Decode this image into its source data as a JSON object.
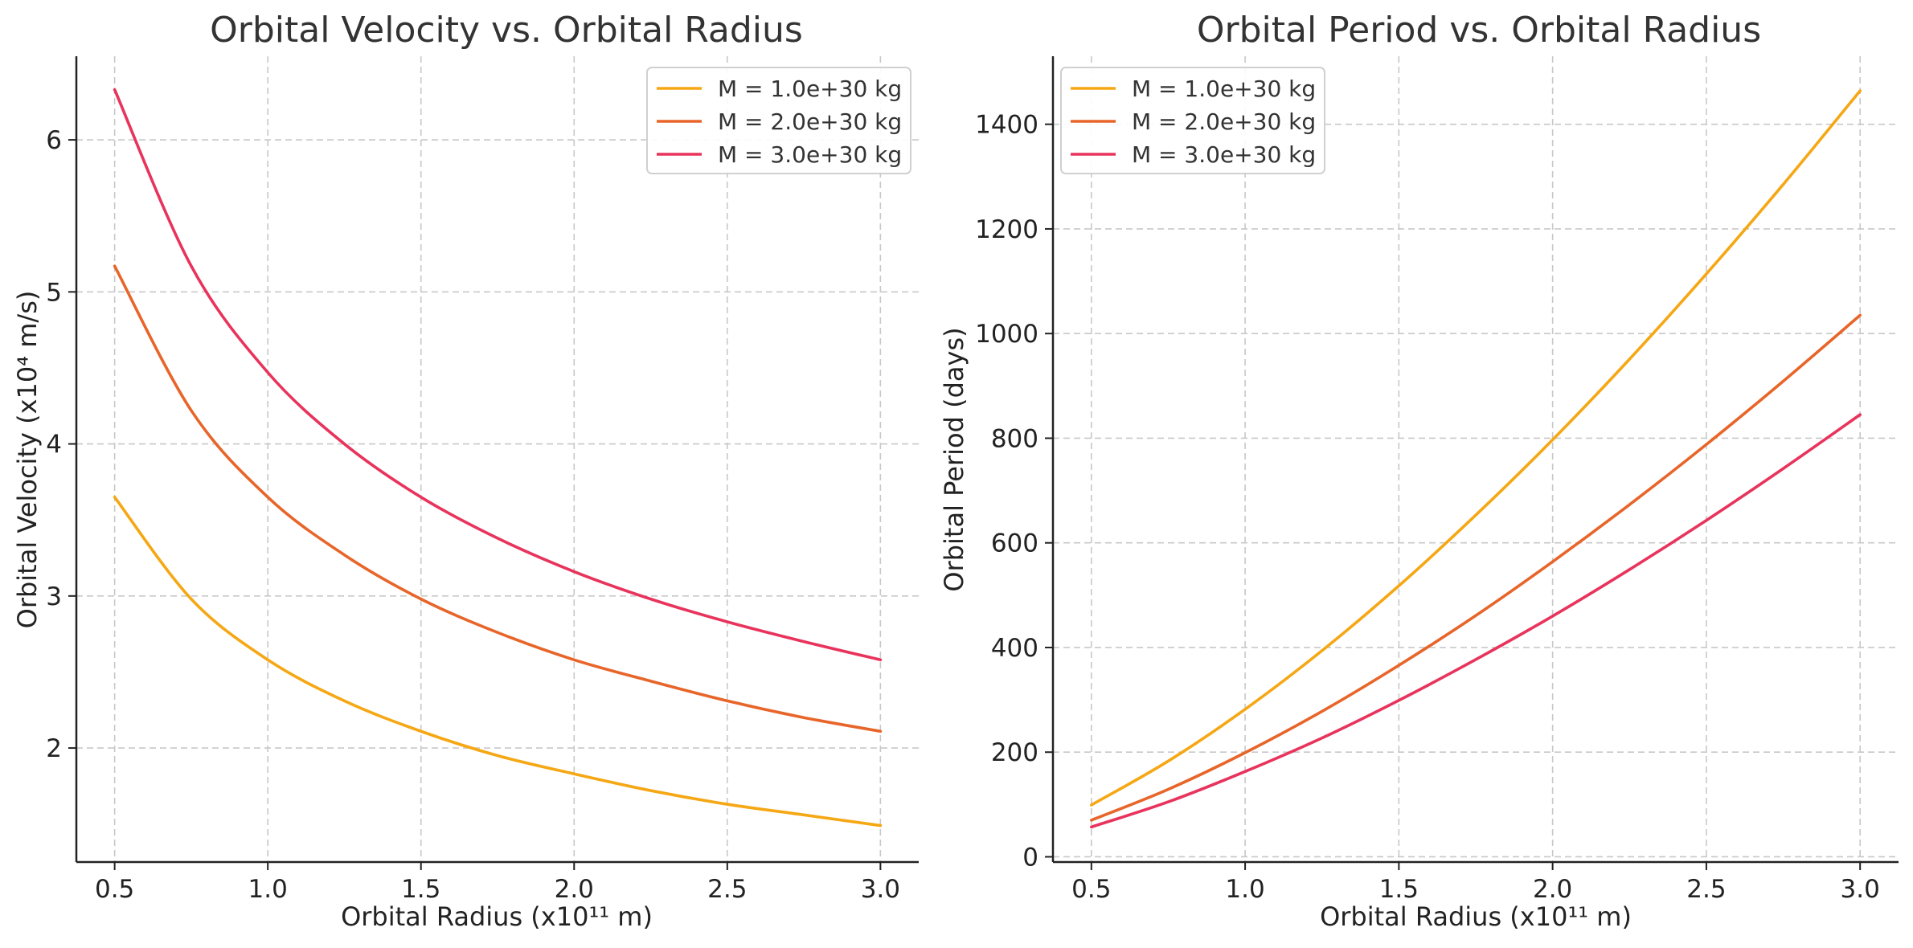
{
  "chart_data": [
    {
      "type": "line",
      "title": "Orbital Velocity vs. Orbital Radius",
      "xlabel": "Orbital Radius (x10¹¹ m)",
      "ylabel": "Orbital Velocity (x10⁴ m/s)",
      "xlim": [
        0.375,
        3.125
      ],
      "ylim": [
        1.25,
        6.55
      ],
      "xticks": [
        0.5,
        1.0,
        1.5,
        2.0,
        2.5,
        3.0
      ],
      "xtick_labels": [
        "0.5",
        "1.0",
        "1.5",
        "2.0",
        "2.5",
        "3.0"
      ],
      "yticks": [
        2,
        3,
        4,
        5,
        6
      ],
      "ytick_labels": [
        "2",
        "3",
        "4",
        "5",
        "6"
      ],
      "grid": true,
      "legend_position": "top-right",
      "x": [
        0.5,
        0.75,
        1.0,
        1.25,
        1.5,
        1.75,
        2.0,
        2.25,
        2.5,
        2.75,
        3.0
      ],
      "series": [
        {
          "name": "M = 1.0e+30 kg",
          "color": "#f5a714",
          "values": [
            3.65,
            2.98,
            2.58,
            2.31,
            2.11,
            1.95,
            1.83,
            1.72,
            1.63,
            1.56,
            1.49
          ]
        },
        {
          "name": "M = 2.0e+30 kg",
          "color": "#e8652a",
          "values": [
            5.17,
            4.22,
            3.65,
            3.27,
            2.98,
            2.76,
            2.58,
            2.44,
            2.31,
            2.2,
            2.11
          ]
        },
        {
          "name": "M = 3.0e+30 kg",
          "color": "#e8345c",
          "values": [
            6.33,
            5.17,
            4.47,
            4.0,
            3.65,
            3.38,
            3.16,
            2.98,
            2.83,
            2.7,
            2.58
          ]
        }
      ]
    },
    {
      "type": "line",
      "title": "Orbital Period vs. Orbital Radius",
      "xlabel": "Orbital Radius (x10¹¹ m)",
      "ylabel": "Orbital Period (days)",
      "xlim": [
        0.375,
        3.125
      ],
      "ylim": [
        -10,
        1530
      ],
      "xticks": [
        0.5,
        1.0,
        1.5,
        2.0,
        2.5,
        3.0
      ],
      "xtick_labels": [
        "0.5",
        "1.0",
        "1.5",
        "2.0",
        "2.5",
        "3.0"
      ],
      "yticks": [
        0,
        200,
        400,
        600,
        800,
        1000,
        1200,
        1400
      ],
      "ytick_labels": [
        "0",
        "200",
        "400",
        "600",
        "800",
        "1000",
        "1200",
        "1400"
      ],
      "grid": true,
      "legend_position": "top-left",
      "x": [
        0.5,
        0.75,
        1.0,
        1.25,
        1.5,
        1.75,
        2.0,
        2.25,
        2.5,
        2.75,
        3.0
      ],
      "series": [
        {
          "name": "M = 1.0e+30 kg",
          "color": "#f5a714",
          "values": [
            99,
            183,
            282,
            394,
            518,
            653,
            797,
            951,
            1114,
            1285,
            1464
          ]
        },
        {
          "name": "M = 2.0e+30 kg",
          "color": "#e8652a",
          "values": [
            70,
            129,
            199,
            278,
            366,
            461,
            564,
            673,
            788,
            909,
            1035
          ]
        },
        {
          "name": "M = 3.0e+30 kg",
          "color": "#e8345c",
          "values": [
            57,
            105,
            163,
            227,
            299,
            377,
            460,
            549,
            643,
            742,
            845
          ]
        }
      ]
    }
  ]
}
